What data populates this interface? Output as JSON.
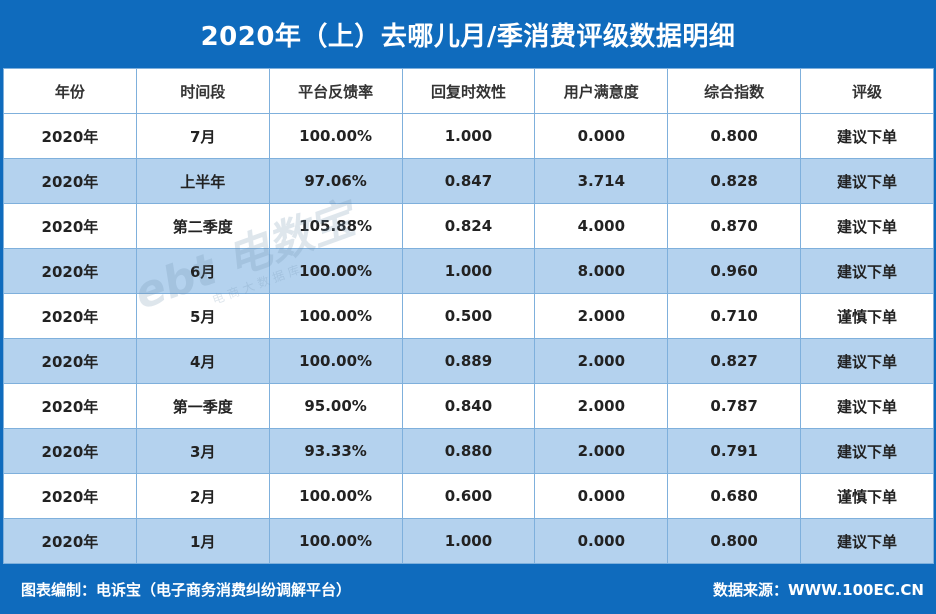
{
  "title": "2020年（上）去哪儿月/季消费评级数据明细",
  "table": {
    "headers": [
      "年份",
      "时间段",
      "平台反馈率",
      "回复时效性",
      "用户满意度",
      "综合指数",
      "评级"
    ],
    "rows": [
      [
        "2020年",
        "7月",
        "100.00%",
        "1.000",
        "0.000",
        "0.800",
        "建议下单"
      ],
      [
        "2020年",
        "上半年",
        "97.06%",
        "0.847",
        "3.714",
        "0.828",
        "建议下单"
      ],
      [
        "2020年",
        "第二季度",
        "105.88%",
        "0.824",
        "4.000",
        "0.870",
        "建议下单"
      ],
      [
        "2020年",
        "6月",
        "100.00%",
        "1.000",
        "8.000",
        "0.960",
        "建议下单"
      ],
      [
        "2020年",
        "5月",
        "100.00%",
        "0.500",
        "2.000",
        "0.710",
        "谨慎下单"
      ],
      [
        "2020年",
        "4月",
        "100.00%",
        "0.889",
        "2.000",
        "0.827",
        "建议下单"
      ],
      [
        "2020年",
        "第一季度",
        "95.00%",
        "0.840",
        "2.000",
        "0.787",
        "建议下单"
      ],
      [
        "2020年",
        "3月",
        "93.33%",
        "0.880",
        "2.000",
        "0.791",
        "建议下单"
      ],
      [
        "2020年",
        "2月",
        "100.00%",
        "0.600",
        "0.000",
        "0.680",
        "谨慎下单"
      ],
      [
        "2020年",
        "1月",
        "100.00%",
        "1.000",
        "0.000",
        "0.800",
        "建议下单"
      ]
    ]
  },
  "watermark": {
    "logo": "ebt 电数宝",
    "sub": "电商大数据库"
  },
  "footer": {
    "left": "图表编制：电诉宝（电子商务消费纠纷调解平台）",
    "right": "数据来源：WWW.100EC.CN"
  },
  "colors": {
    "brand_blue": "#0f6bbd",
    "row_alt": "#b4d2ee"
  }
}
